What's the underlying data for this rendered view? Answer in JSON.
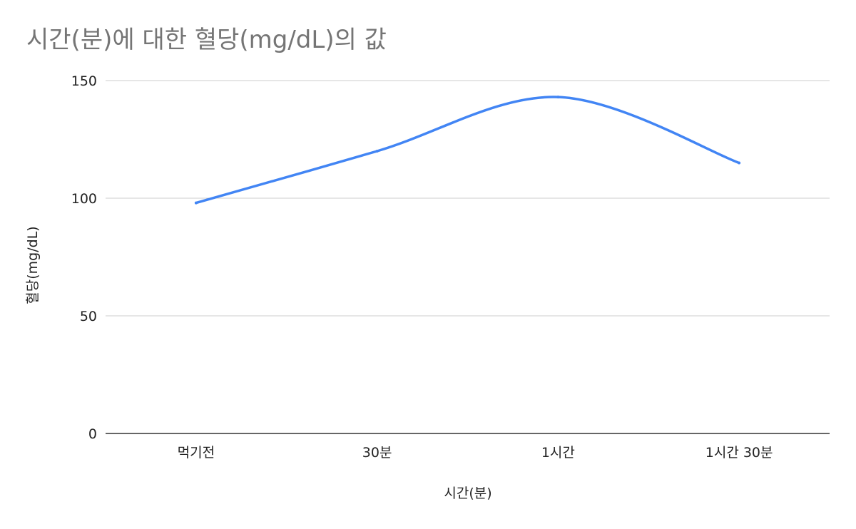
{
  "chart_data": {
    "type": "line",
    "title": "시간(분)에 대한 혈당(mg/dL)의 값",
    "xlabel": "시간(분)",
    "ylabel": "혈당(mg/dL)",
    "categories": [
      "먹기전",
      "30분",
      "1시간",
      "1시간 30분"
    ],
    "series": [
      {
        "values": [
          98,
          120,
          143,
          115
        ],
        "color": "#4285f4"
      }
    ],
    "ylim": [
      0,
      150
    ],
    "yticks": [
      0,
      50,
      100,
      150
    ],
    "grid": true,
    "legend": "none",
    "smooth": true
  }
}
